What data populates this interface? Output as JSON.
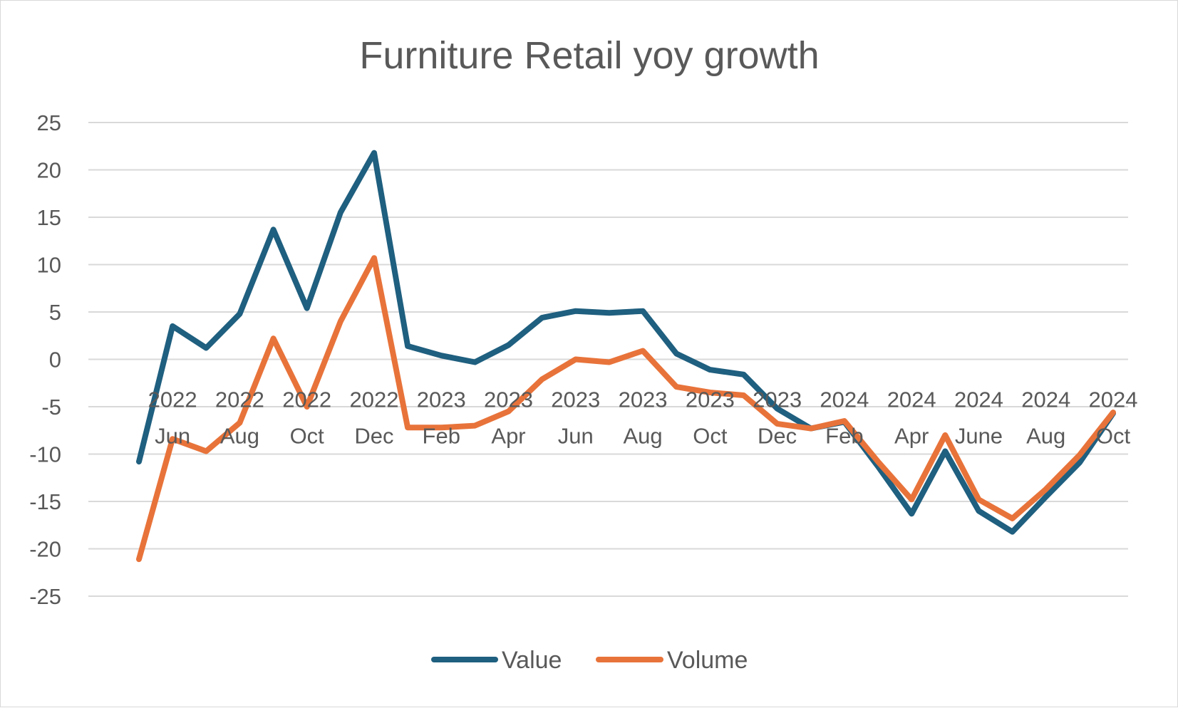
{
  "chart_data": {
    "type": "line",
    "title": "Furniture Retail yoy growth",
    "xlabel": "",
    "ylabel": "",
    "ylim": [
      -25,
      25
    ],
    "yticks": [
      25,
      20,
      15,
      10,
      5,
      0,
      -5,
      -10,
      -15,
      -20,
      -25
    ],
    "grid": true,
    "legend_position": "bottom",
    "categories": [
      "",
      "2022 Jun",
      "",
      "2022 Aug",
      "",
      "2022 Oct",
      "",
      "2022 Dec",
      "",
      "2023 Feb",
      "",
      "2023 Apr",
      "",
      "2023 Jun",
      "",
      "2023 Aug",
      "",
      "2023 Oct",
      "",
      "2023 Dec",
      "",
      "2024 Feb",
      "",
      "2024 Apr",
      "",
      "2024 June",
      "",
      "2024 Aug",
      "",
      "2024 Oct"
    ],
    "category_labels": [
      {
        "year": "2022",
        "month": "Jun"
      },
      {
        "year": "2022",
        "month": "Aug"
      },
      {
        "year": "2022",
        "month": "Oct"
      },
      {
        "year": "2022",
        "month": "Dec"
      },
      {
        "year": "2023",
        "month": "Feb"
      },
      {
        "year": "2023",
        "month": "Apr"
      },
      {
        "year": "2023",
        "month": "Jun"
      },
      {
        "year": "2023",
        "month": "Aug"
      },
      {
        "year": "2023",
        "month": "Oct"
      },
      {
        "year": "2023",
        "month": "Dec"
      },
      {
        "year": "2024",
        "month": "Feb"
      },
      {
        "year": "2024",
        "month": "Apr"
      },
      {
        "year": "2024",
        "month": "June"
      },
      {
        "year": "2024",
        "month": "Aug"
      },
      {
        "year": "2024",
        "month": "Oct"
      }
    ],
    "series": [
      {
        "name": "Value",
        "color": "#1f5f7f",
        "values": [
          -10.8,
          3.5,
          1.2,
          4.8,
          13.7,
          5.4,
          15.5,
          21.8,
          1.4,
          0.4,
          -0.3,
          1.5,
          4.4,
          5.1,
          4.9,
          5.1,
          0.6,
          -1.1,
          -1.6,
          -5.2,
          -7.3,
          -6.6,
          -11.3,
          -16.3,
          -9.7,
          -16.0,
          -18.2,
          -14.5,
          -10.9,
          -5.7
        ]
      },
      {
        "name": "Volume",
        "color": "#e8733a",
        "values": [
          -21.1,
          -8.4,
          -9.7,
          -6.7,
          2.2,
          -5.0,
          4.0,
          10.7,
          -7.2,
          -7.2,
          -7.0,
          -5.5,
          -2.1,
          0.0,
          -0.3,
          0.9,
          -2.9,
          -3.5,
          -3.8,
          -6.8,
          -7.3,
          -6.5,
          -10.8,
          -14.8,
          -8.0,
          -14.8,
          -16.8,
          -13.7,
          -10.1,
          -5.6
        ]
      }
    ]
  }
}
